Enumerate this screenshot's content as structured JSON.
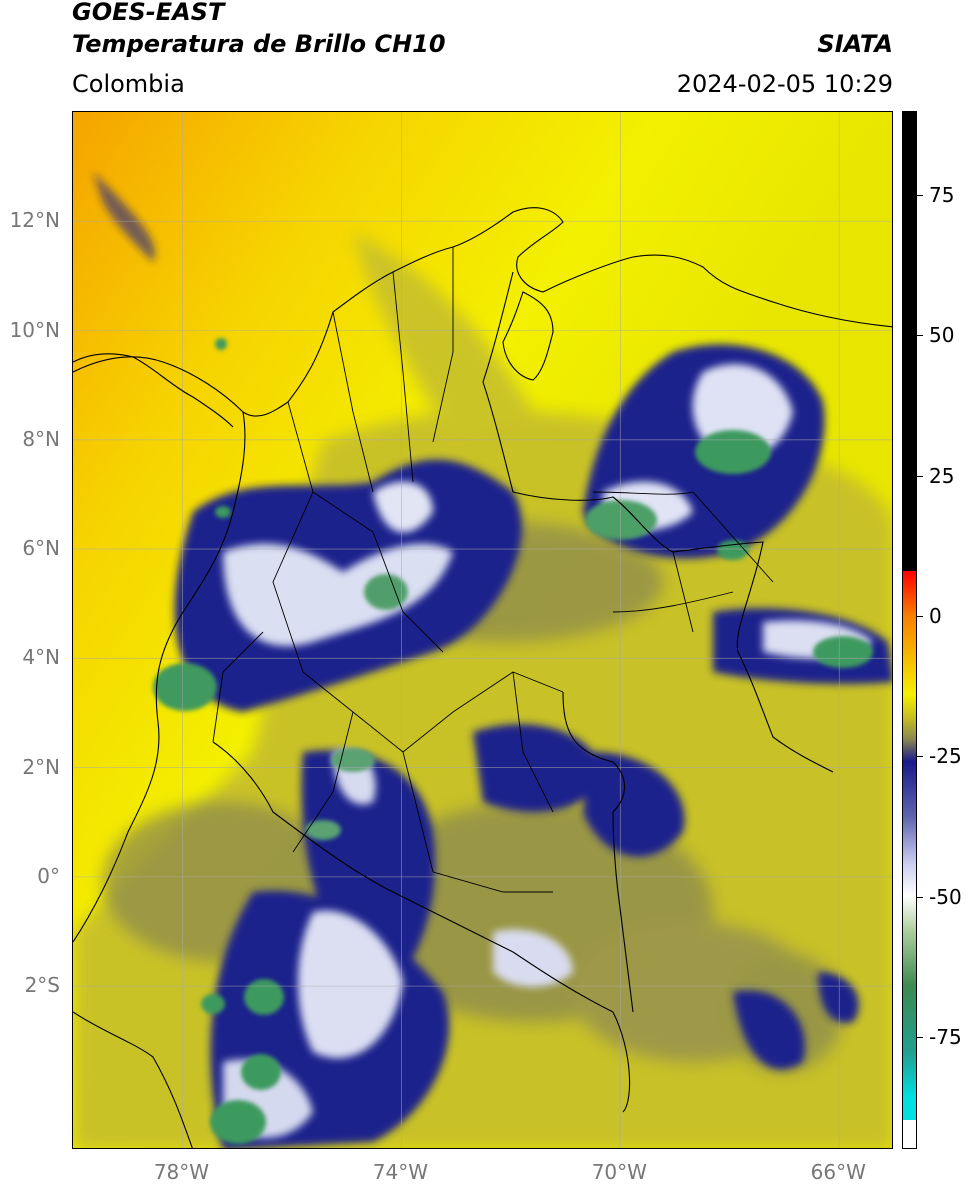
{
  "header": {
    "satellite": "GOES-EAST",
    "product": "Temperatura de Brillo CH10",
    "brand": "SIATA",
    "region": "Colombia",
    "timestamp": "2024-02-05 10:29"
  },
  "map": {
    "lat_range": [
      -5,
      14
    ],
    "lon_range": [
      -80,
      -65
    ],
    "lat_labels": [
      {
        "value": 12,
        "text": "12°N"
      },
      {
        "value": 10,
        "text": "10°N"
      },
      {
        "value": 8,
        "text": "8°N"
      },
      {
        "value": 6,
        "text": "6°N"
      },
      {
        "value": 4,
        "text": "4°N"
      },
      {
        "value": 2,
        "text": "2°N"
      },
      {
        "value": 0,
        "text": "0°"
      },
      {
        "value": -2,
        "text": "2°S"
      }
    ],
    "lon_labels": [
      {
        "value": -78,
        "text": "78°W"
      },
      {
        "value": -74,
        "text": "74°W"
      },
      {
        "value": -70,
        "text": "70°W"
      },
      {
        "value": -66,
        "text": "66°W"
      }
    ],
    "colors": {
      "warm": "#f3f000",
      "hot": "#f7a600",
      "cloud_low": "#c9c22c",
      "cloud_mid": "#8a8a50",
      "cloud_cold": "#1b1f8a",
      "cloud_colder": "#d8dcf0",
      "cloud_coldest": "#3e9a5e",
      "border": "#000000",
      "grid": "#b0b0b0"
    }
  },
  "colorbar": {
    "range": [
      -95,
      90
    ],
    "ticks": [
      {
        "value": 75,
        "text": "75"
      },
      {
        "value": 50,
        "text": "50"
      },
      {
        "value": 25,
        "text": "25"
      },
      {
        "value": 0,
        "text": "0"
      },
      {
        "value": -25,
        "text": "-25"
      },
      {
        "value": -50,
        "text": "-50"
      },
      {
        "value": -75,
        "text": "-75"
      }
    ]
  }
}
